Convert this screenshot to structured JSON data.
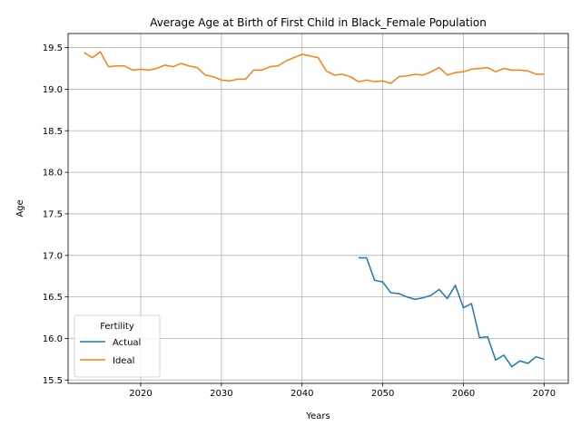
{
  "chart_data": {
    "type": "line",
    "title": "Average Age at Birth of First Child in Black_Female Population",
    "xlabel": "Years",
    "ylabel": "Age",
    "xlim": [
      2011,
      2073
    ],
    "ylim": [
      15.46,
      19.67
    ],
    "xticks": [
      2020,
      2030,
      2040,
      2050,
      2060,
      2070
    ],
    "yticks": [
      15.5,
      16.0,
      16.5,
      17.0,
      17.5,
      18.0,
      18.5,
      19.0,
      19.5
    ],
    "grid": true,
    "legend": {
      "title": "Fertility",
      "placement": "lower-left"
    },
    "series": [
      {
        "name": "Actual",
        "color": "#1f77b4",
        "x": [
          2047,
          2048,
          2049,
          2050,
          2051,
          2052,
          2053,
          2054,
          2055,
          2056,
          2057,
          2058,
          2059,
          2060,
          2061,
          2062,
          2063,
          2064,
          2065,
          2066,
          2067,
          2068,
          2069,
          2070
        ],
        "y": [
          16.97,
          16.97,
          16.7,
          16.68,
          16.55,
          16.54,
          16.5,
          16.47,
          16.49,
          16.52,
          16.59,
          16.48,
          16.64,
          16.37,
          16.42,
          16.01,
          16.02,
          15.74,
          15.8,
          15.66,
          15.73,
          15.7,
          15.78,
          15.75
        ]
      },
      {
        "name": "Ideal",
        "color": "#ff7f0e",
        "x": [
          2013,
          2014,
          2015,
          2016,
          2017,
          2018,
          2019,
          2020,
          2021,
          2022,
          2023,
          2024,
          2025,
          2026,
          2027,
          2028,
          2029,
          2030,
          2031,
          2032,
          2033,
          2034,
          2035,
          2036,
          2037,
          2038,
          2039,
          2040,
          2041,
          2042,
          2043,
          2044,
          2045,
          2046,
          2047,
          2048,
          2049,
          2050,
          2051,
          2052,
          2053,
          2054,
          2055,
          2056,
          2057,
          2058,
          2059,
          2060,
          2061,
          2062,
          2063,
          2064,
          2065,
          2066,
          2067,
          2068,
          2069,
          2070
        ],
        "y": [
          19.44,
          19.38,
          19.45,
          19.27,
          19.28,
          19.28,
          19.23,
          19.24,
          19.23,
          19.25,
          19.29,
          19.27,
          19.31,
          19.28,
          19.26,
          19.17,
          19.15,
          19.11,
          19.1,
          19.12,
          19.12,
          19.23,
          19.23,
          19.27,
          19.28,
          19.34,
          19.38,
          19.42,
          19.4,
          19.38,
          19.22,
          19.17,
          19.18,
          19.15,
          19.09,
          19.11,
          19.09,
          19.1,
          19.07,
          19.15,
          19.16,
          19.18,
          19.17,
          19.21,
          19.26,
          19.17,
          19.2,
          19.21,
          19.24,
          19.25,
          19.26,
          19.21,
          19.25,
          19.23,
          19.23,
          19.22,
          19.18,
          19.18
        ]
      }
    ]
  }
}
